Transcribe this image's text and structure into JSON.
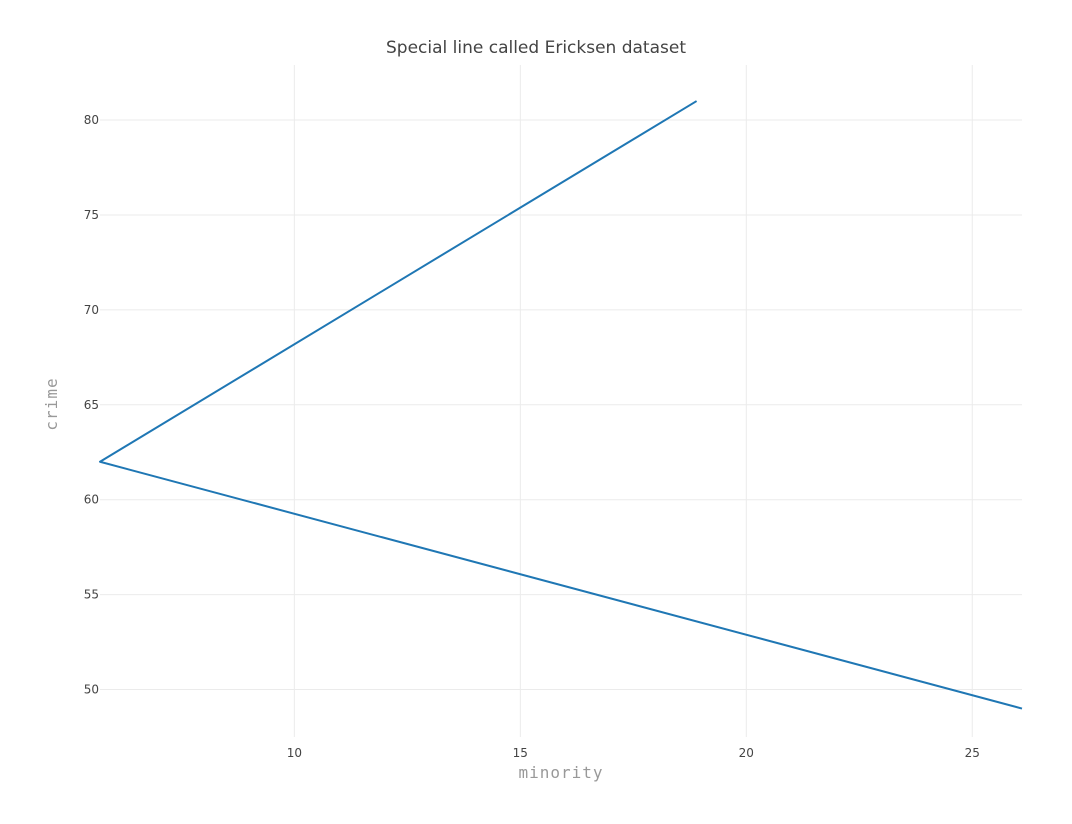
{
  "chart_data": {
    "type": "line",
    "title": "Special line called Ericksen dataset",
    "xlabel": "minority",
    "ylabel": "crime",
    "xlim": [
      5.7,
      26.1
    ],
    "ylim": [
      47.5,
      82.9
    ],
    "x_ticks": [
      10,
      15,
      20,
      25
    ],
    "y_ticks": [
      50,
      55,
      60,
      65,
      70,
      75,
      80
    ],
    "grid": true,
    "series": [
      {
        "color": "#1f77b4",
        "points": [
          [
            18.9,
            81.0
          ],
          [
            5.7,
            62.0
          ],
          [
            26.1,
            49.0
          ]
        ]
      }
    ]
  }
}
